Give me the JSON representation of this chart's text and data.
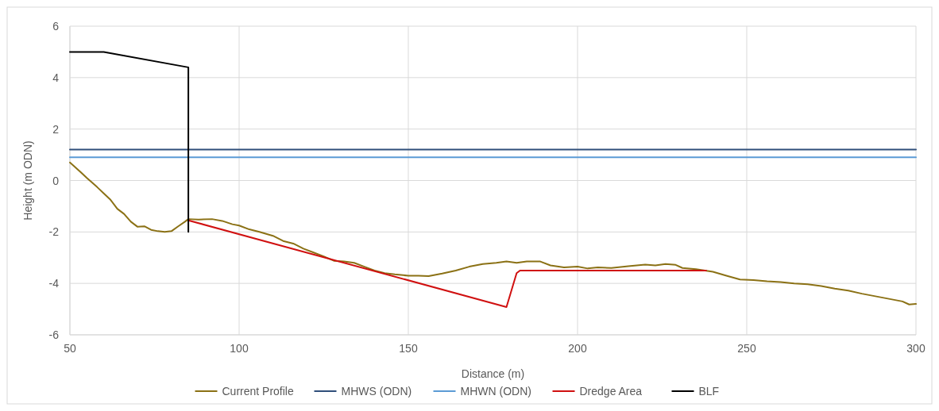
{
  "chart_data": {
    "type": "line",
    "xlabel": "Distance (m)",
    "ylabel": "Height (m ODN)",
    "xlim": [
      50,
      300
    ],
    "xticks": [
      50,
      100,
      150,
      200,
      250,
      300
    ],
    "ylim": [
      -6,
      6
    ],
    "yticks": [
      -6,
      -4,
      -2,
      0,
      2,
      4,
      6
    ],
    "grid": true,
    "legend": "bottom",
    "marker": "none",
    "line_style": "solid",
    "series": [
      {
        "name": "Current Profile",
        "color": "#8b7115",
        "x": [
          50,
          53,
          55,
          58,
          60,
          62,
          64,
          66,
          68,
          70,
          72,
          74,
          76,
          78,
          80,
          82,
          84,
          85,
          88,
          92,
          95,
          98,
          100,
          103,
          106,
          110,
          113,
          116,
          119,
          122,
          125,
          128,
          131,
          134,
          137,
          140,
          143,
          146,
          150,
          153,
          156,
          160,
          164,
          168,
          172,
          176,
          179,
          182,
          185,
          189,
          192,
          196,
          200,
          203,
          206,
          210,
          215,
          220,
          223,
          226,
          229,
          231,
          235,
          240,
          244,
          248,
          252,
          256,
          260,
          264,
          268,
          272,
          276,
          280,
          284,
          288,
          292,
          296,
          298,
          300
        ],
        "values": [
          0.7,
          0.35,
          0.1,
          -0.25,
          -0.5,
          -0.75,
          -1.1,
          -1.3,
          -1.6,
          -1.8,
          -1.78,
          -1.92,
          -1.97,
          -2.0,
          -1.97,
          -1.78,
          -1.6,
          -1.5,
          -1.52,
          -1.5,
          -1.57,
          -1.7,
          -1.75,
          -1.9,
          -2.0,
          -2.15,
          -2.35,
          -2.45,
          -2.65,
          -2.8,
          -2.95,
          -3.12,
          -3.15,
          -3.2,
          -3.35,
          -3.5,
          -3.6,
          -3.65,
          -3.7,
          -3.7,
          -3.72,
          -3.62,
          -3.5,
          -3.35,
          -3.25,
          -3.2,
          -3.15,
          -3.2,
          -3.15,
          -3.15,
          -3.3,
          -3.38,
          -3.35,
          -3.42,
          -3.38,
          -3.4,
          -3.33,
          -3.27,
          -3.3,
          -3.25,
          -3.28,
          -3.4,
          -3.45,
          -3.55,
          -3.7,
          -3.85,
          -3.87,
          -3.92,
          -3.95,
          -4.0,
          -4.03,
          -4.1,
          -4.2,
          -4.28,
          -4.4,
          -4.5,
          -4.6,
          -4.7,
          -4.82,
          -4.8
        ]
      },
      {
        "name": "MHWS (ODN)",
        "color": "#2f4e7a",
        "x": [
          50,
          300
        ],
        "values": [
          1.2,
          1.2
        ]
      },
      {
        "name": "MHWN (ODN)",
        "color": "#5b9bd5",
        "x": [
          50,
          300
        ],
        "values": [
          0.9,
          0.9
        ]
      },
      {
        "name": "Dredge Area",
        "color": "#d01010",
        "x": [
          85,
          179,
          182,
          183,
          238
        ],
        "values": [
          -1.55,
          -4.92,
          -3.6,
          -3.5,
          -3.5
        ]
      },
      {
        "name": "BLF",
        "color": "#000000",
        "x": [
          50,
          60,
          85,
          85
        ],
        "values": [
          5,
          5,
          4.4,
          -2
        ]
      }
    ]
  }
}
